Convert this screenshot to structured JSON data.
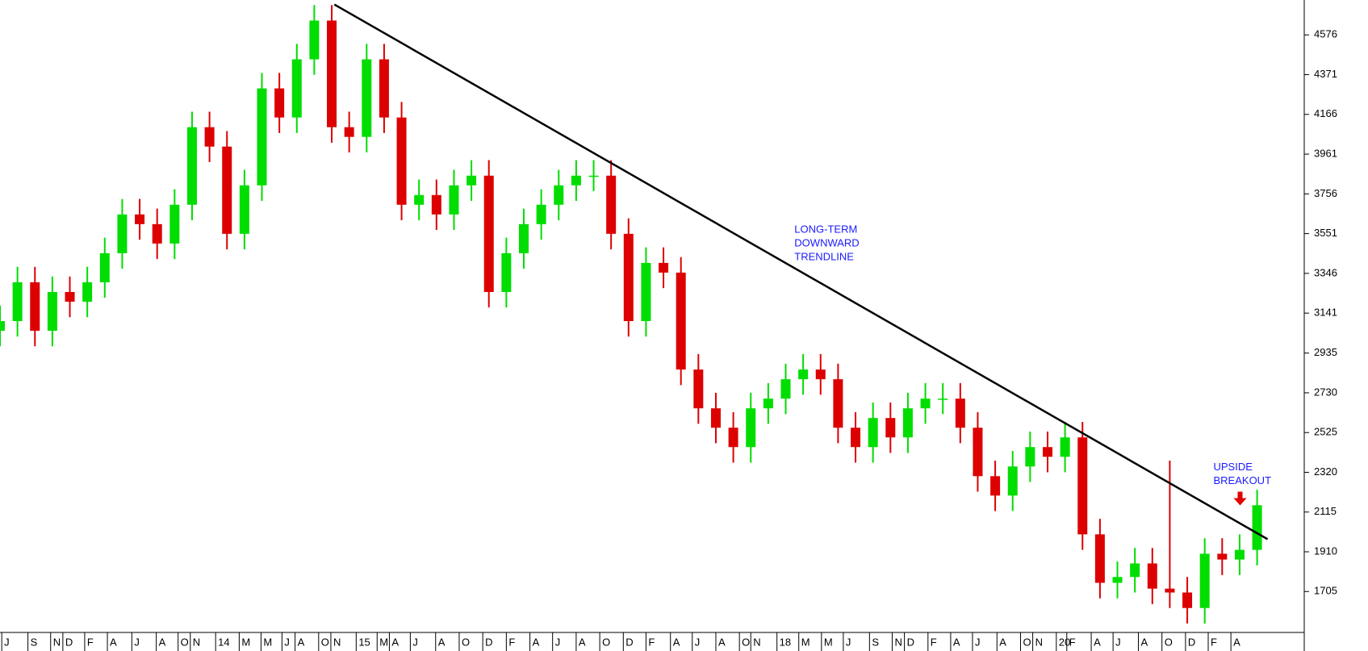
{
  "chart_data": {
    "type": "candlestick",
    "up_color": "#00dd00",
    "down_color": "#dd0000",
    "x": [
      0,
      1,
      2,
      3,
      4,
      5,
      6,
      7,
      8,
      9,
      10,
      11,
      12,
      13,
      14,
      15,
      16,
      17,
      18,
      19,
      20,
      21,
      22,
      23,
      24,
      25,
      26,
      27,
      28,
      29,
      30,
      31,
      32,
      33,
      34,
      35,
      36,
      37,
      38,
      39,
      40,
      41,
      42,
      43,
      44,
      45,
      46,
      47,
      48,
      49,
      50,
      51,
      52,
      53,
      54,
      55,
      56,
      57,
      58,
      59,
      60,
      61,
      62,
      63,
      64,
      65,
      66,
      67,
      68,
      69,
      70,
      71,
      72
    ],
    "open": [
      3050,
      3100,
      3300,
      3050,
      3250,
      3200,
      3300,
      3450,
      3650,
      3600,
      3500,
      3700,
      4100,
      4000,
      3550,
      3800,
      4300,
      4150,
      4450,
      4650,
      4100,
      4050,
      4450,
      4150,
      3700,
      3750,
      3650,
      3800,
      3850,
      3250,
      3450,
      3600,
      3700,
      3800,
      3850,
      3850,
      3550,
      3100,
      3400,
      3350,
      2850,
      2650,
      2550,
      2450,
      2650,
      2700,
      2800,
      2850,
      2800,
      2550,
      2450,
      2600,
      2500,
      2650,
      2700,
      2700,
      2550,
      2300,
      2200,
      2350,
      2450,
      2400,
      2500,
      2000,
      1750,
      1780,
      1850,
      1720,
      1700,
      1620,
      1900,
      1870,
      1920
    ],
    "high": [
      3180,
      3380,
      3380,
      3330,
      3330,
      3380,
      3530,
      3730,
      3730,
      3680,
      3780,
      4180,
      4180,
      4080,
      3880,
      4380,
      4380,
      4530,
      4730,
      4730,
      4180,
      4530,
      4530,
      4230,
      3830,
      3830,
      3880,
      3930,
      3930,
      3530,
      3680,
      3780,
      3880,
      3930,
      3930,
      3930,
      3630,
      3480,
      3480,
      3430,
      2930,
      2730,
      2630,
      2730,
      2780,
      2880,
      2930,
      2930,
      2880,
      2630,
      2680,
      2680,
      2730,
      2780,
      2780,
      2780,
      2630,
      2380,
      2430,
      2530,
      2530,
      2580,
      2580,
      2080,
      1860,
      1930,
      1930,
      2380,
      1780,
      1980,
      1980,
      2000,
      2230
    ],
    "low": [
      2970,
      3020,
      2970,
      2970,
      3120,
      3120,
      3220,
      3370,
      3520,
      3420,
      3420,
      3620,
      3920,
      3470,
      3470,
      3720,
      4070,
      4070,
      4370,
      4020,
      3970,
      3970,
      4070,
      3620,
      3620,
      3570,
      3570,
      3720,
      3170,
      3170,
      3370,
      3520,
      3620,
      3720,
      3770,
      3470,
      3020,
      3020,
      3270,
      2770,
      2570,
      2470,
      2370,
      2370,
      2570,
      2620,
      2720,
      2720,
      2470,
      2370,
      2370,
      2420,
      2420,
      2570,
      2620,
      2470,
      2220,
      2120,
      2120,
      2270,
      2320,
      2320,
      1920,
      1670,
      1670,
      1700,
      1640,
      1620,
      1540,
      1540,
      1790,
      1790,
      1840
    ],
    "close": [
      3100,
      3300,
      3050,
      3250,
      3200,
      3300,
      3450,
      3650,
      3600,
      3500,
      3700,
      4100,
      4000,
      3550,
      3800,
      4300,
      4150,
      4450,
      4650,
      4100,
      4050,
      4450,
      4150,
      3700,
      3750,
      3650,
      3800,
      3850,
      3250,
      3450,
      3600,
      3700,
      3800,
      3850,
      3850,
      3550,
      3100,
      3400,
      3350,
      2850,
      2650,
      2550,
      2450,
      2650,
      2700,
      2800,
      2850,
      2800,
      2550,
      2450,
      2600,
      2500,
      2650,
      2700,
      2700,
      2550,
      2300,
      2200,
      2350,
      2450,
      2400,
      2500,
      2000,
      1750,
      1780,
      1850,
      1720,
      1700,
      1620,
      1900,
      1870,
      1920,
      2150
    ],
    "xlim": [
      0,
      74.7
    ],
    "ylim": [
      1494,
      4756
    ],
    "yticks": [
      1705,
      1910,
      2115,
      2320,
      2525,
      2730,
      2935,
      3141,
      3346,
      3551,
      3756,
      3961,
      4166,
      4371,
      4576
    ],
    "xticks": [
      {
        "value": 0.1,
        "label": "J"
      },
      {
        "value": 1.6,
        "label": "S"
      },
      {
        "value": 2.9,
        "label": "N"
      },
      {
        "value": 3.6,
        "label": "D"
      },
      {
        "value": 4.85,
        "label": "F"
      },
      {
        "value": 6.15,
        "label": "A"
      },
      {
        "value": 7.55,
        "label": "J"
      },
      {
        "value": 8.95,
        "label": "A"
      },
      {
        "value": 10.2,
        "label": "O"
      },
      {
        "value": 10.9,
        "label": "N"
      },
      {
        "value": 12.35,
        "label": "14"
      },
      {
        "value": 13.7,
        "label": "M"
      },
      {
        "value": 14.95,
        "label": "M"
      },
      {
        "value": 16.15,
        "label": "J"
      },
      {
        "value": 16.9,
        "label": "A"
      },
      {
        "value": 18.25,
        "label": "O"
      },
      {
        "value": 18.95,
        "label": "N"
      },
      {
        "value": 20.4,
        "label": "15"
      },
      {
        "value": 21.6,
        "label": "M"
      },
      {
        "value": 22.3,
        "label": "A"
      },
      {
        "value": 23.5,
        "label": "J"
      },
      {
        "value": 24.95,
        "label": "A"
      },
      {
        "value": 26.3,
        "label": "O"
      },
      {
        "value": 27.65,
        "label": "D"
      },
      {
        "value": 29.0,
        "label": "F"
      },
      {
        "value": 30.35,
        "label": "A"
      },
      {
        "value": 31.65,
        "label": "J"
      },
      {
        "value": 33.0,
        "label": "A"
      },
      {
        "value": 34.35,
        "label": "O"
      },
      {
        "value": 35.7,
        "label": "D"
      },
      {
        "value": 37.0,
        "label": "F"
      },
      {
        "value": 38.4,
        "label": "A"
      },
      {
        "value": 39.65,
        "label": "J"
      },
      {
        "value": 41.0,
        "label": "A"
      },
      {
        "value": 42.35,
        "label": "O"
      },
      {
        "value": 43.0,
        "label": "N"
      },
      {
        "value": 44.5,
        "label": "18"
      },
      {
        "value": 45.75,
        "label": "M"
      },
      {
        "value": 47.05,
        "label": "M"
      },
      {
        "value": 48.3,
        "label": "J"
      },
      {
        "value": 49.8,
        "label": "S"
      },
      {
        "value": 51.1,
        "label": "N"
      },
      {
        "value": 51.8,
        "label": "D"
      },
      {
        "value": 53.15,
        "label": "F"
      },
      {
        "value": 54.45,
        "label": "A"
      },
      {
        "value": 55.7,
        "label": "J"
      },
      {
        "value": 57.1,
        "label": "A"
      },
      {
        "value": 58.45,
        "label": "O"
      },
      {
        "value": 59.15,
        "label": "N"
      },
      {
        "value": 60.5,
        "label": "20"
      },
      {
        "value": 61.1,
        "label": "F"
      },
      {
        "value": 62.5,
        "label": "A"
      },
      {
        "value": 63.75,
        "label": "J"
      },
      {
        "value": 65.2,
        "label": "A"
      },
      {
        "value": 66.55,
        "label": "O"
      },
      {
        "value": 67.9,
        "label": "D"
      },
      {
        "value": 69.2,
        "label": "F"
      },
      {
        "value": 70.5,
        "label": "A"
      }
    ],
    "trendline": {
      "x": [
        19.15,
        72.6
      ],
      "y": [
        4733,
        1975
      ],
      "color": "#000000"
    },
    "annotations": [
      {
        "lines": [
          "LONG-TERM",
          "DOWNWARD",
          "TRENDLINE"
        ],
        "x": 45.5,
        "y": 3570
      },
      {
        "lines": [
          "UPSIDE",
          "BREAKOUT"
        ],
        "x": 69.5,
        "y": 2345
      }
    ]
  }
}
